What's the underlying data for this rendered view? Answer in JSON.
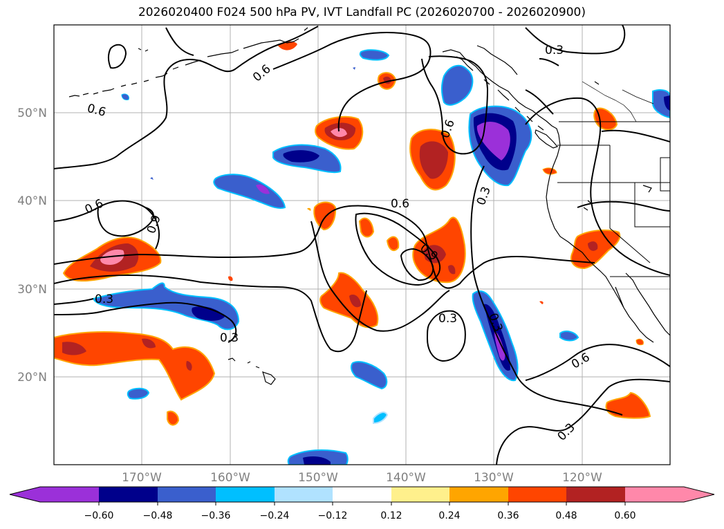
{
  "title": "2026020400 F024 500 hPa PV, IVT Landfall PC (2026020700 - 2026020900)",
  "lat_labels": [
    "50°N",
    "40°N",
    "30°N",
    "20°N"
  ],
  "lon_labels": [
    "170°W",
    "160°W",
    "150°W",
    "140°W",
    "130°W",
    "120°W"
  ],
  "contour_labels": {
    "l1": "0.6",
    "l2": "0.6",
    "l3": "0.3",
    "l4": "0.6",
    "l5": "0.9",
    "l6": "0.3",
    "l7": "0.3",
    "l8": "0.6",
    "l9": "0.3",
    "l10": "0.6",
    "l11": "0.9",
    "l12": "0.3",
    "l13": "0.3",
    "l14": "0.6",
    "l15": "0.3"
  },
  "colorbar": {
    "ticks": [
      "−0.60",
      "−0.48",
      "−0.36",
      "−0.24",
      "−0.12",
      "0.12",
      "0.24",
      "0.36",
      "0.48",
      "0.60"
    ],
    "colors": {
      "under": "#9b30d9",
      "b1": "#9b30d9",
      "b2": "#00008b",
      "b3": "#3a5fcd",
      "b4": "#00bfff",
      "b5": "#b0e2ff",
      "b6": "#ffffff",
      "b7": "#fff08c",
      "b8": "#ffa500",
      "b9": "#ff4500",
      "b10": "#b22222",
      "b11": "#ff88aa",
      "over": "#ff88aa"
    }
  }
}
